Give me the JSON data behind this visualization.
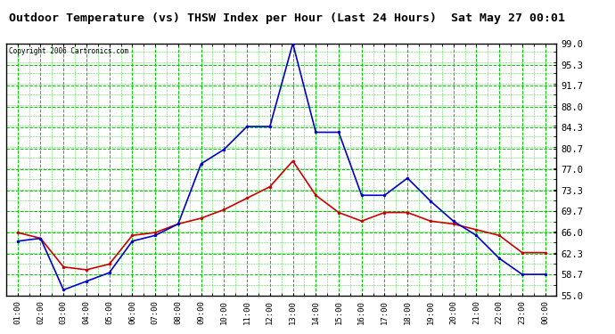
{
  "title": "Outdoor Temperature (vs) THSW Index per Hour (Last 24 Hours)  Sat May 27 00:01",
  "copyright": "Copyright 2006 Cartronics.com",
  "x_labels": [
    "01:00",
    "02:00",
    "03:00",
    "04:00",
    "05:00",
    "06:00",
    "07:00",
    "08:00",
    "09:00",
    "10:00",
    "11:00",
    "12:00",
    "13:00",
    "14:00",
    "15:00",
    "16:00",
    "17:00",
    "18:00",
    "19:00",
    "20:00",
    "21:00",
    "22:00",
    "23:00",
    "00:00"
  ],
  "y_ticks": [
    55.0,
    58.7,
    62.3,
    66.0,
    69.7,
    73.3,
    77.0,
    80.7,
    84.3,
    88.0,
    91.7,
    95.3,
    99.0
  ],
  "y_min": 55.0,
  "y_max": 99.0,
  "temp_data": [
    66.0,
    65.0,
    60.0,
    59.5,
    60.5,
    65.5,
    66.0,
    67.5,
    68.5,
    70.0,
    72.0,
    74.0,
    78.5,
    72.5,
    69.5,
    68.0,
    69.5,
    69.5,
    68.0,
    67.5,
    66.5,
    65.5,
    62.5,
    62.5
  ],
  "thsw_data": [
    64.5,
    65.0,
    56.0,
    57.5,
    59.0,
    64.5,
    65.5,
    67.5,
    78.0,
    80.5,
    84.5,
    84.5,
    99.0,
    83.5,
    83.5,
    72.5,
    72.5,
    75.5,
    71.5,
    68.0,
    65.5,
    61.5,
    58.7,
    58.7
  ],
  "temp_color": "#cc0000",
  "thsw_color": "#0000cc",
  "bg_color": "#ffffff",
  "grid_color": "#00cc00",
  "border_color": "#000000"
}
